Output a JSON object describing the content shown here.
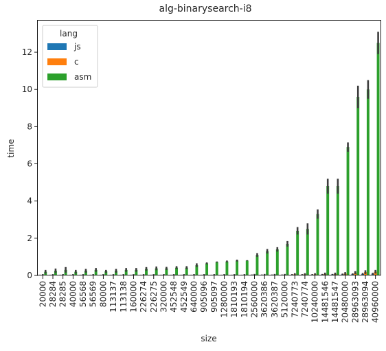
{
  "chart_data": {
    "type": "bar",
    "title": "alg-binarysearch-i8",
    "xlabel": "size",
    "ylabel": "time",
    "ylim": [
      0,
      13.7
    ],
    "yticks": [
      0,
      2,
      4,
      6,
      8,
      10,
      12
    ],
    "grid": false,
    "legend_position": "top-left",
    "legend_title": "lang",
    "categories": [
      "20000",
      "28284",
      "28285",
      "40000",
      "56568",
      "56569",
      "80000",
      "113137",
      "113138",
      "160000",
      "226274",
      "226275",
      "320000",
      "452548",
      "452549",
      "640000",
      "905096",
      "905097",
      "1280000",
      "1810193",
      "1810194",
      "2560000",
      "3620386",
      "3620387",
      "5120000",
      "7240773",
      "7240774",
      "10240000",
      "14481546",
      "14481547",
      "20480000",
      "28963093",
      "28963094",
      "40960000"
    ],
    "series": [
      {
        "name": "js",
        "color": "#1f77b4",
        "values": [
          0.02,
          0.02,
          0.02,
          0.02,
          0.02,
          0.02,
          0.02,
          0.02,
          0.02,
          0.02,
          0.02,
          0.02,
          0.02,
          0.02,
          0.02,
          0.02,
          0.02,
          0.02,
          0.02,
          0.02,
          0.02,
          0.03,
          0.03,
          0.03,
          0.03,
          0.04,
          0.04,
          0.04,
          0.05,
          0.05,
          0.06,
          0.07,
          0.08,
          0.09
        ],
        "errors": [
          0.02,
          0.02,
          0.02,
          0.02,
          0.02,
          0.02,
          0.02,
          0.02,
          0.02,
          0.02,
          0.02,
          0.02,
          0.02,
          0.02,
          0.02,
          0.02,
          0.02,
          0.02,
          0.02,
          0.02,
          0.02,
          0.02,
          0.02,
          0.02,
          0.02,
          0.03,
          0.03,
          0.03,
          0.03,
          0.03,
          0.04,
          0.04,
          0.05,
          0.05
        ]
      },
      {
        "name": "c",
        "color": "#ff7f0e",
        "values": [
          0.02,
          0.02,
          0.02,
          0.02,
          0.02,
          0.02,
          0.02,
          0.02,
          0.02,
          0.02,
          0.02,
          0.02,
          0.02,
          0.02,
          0.02,
          0.02,
          0.02,
          0.02,
          0.02,
          0.02,
          0.02,
          0.03,
          0.03,
          0.03,
          0.03,
          0.06,
          0.06,
          0.06,
          0.08,
          0.08,
          0.1,
          0.15,
          0.18,
          0.2
        ],
        "errors": [
          0.05,
          0.05,
          0.05,
          0.05,
          0.05,
          0.05,
          0.05,
          0.05,
          0.05,
          0.05,
          0.05,
          0.05,
          0.05,
          0.05,
          0.05,
          0.05,
          0.05,
          0.05,
          0.05,
          0.05,
          0.05,
          0.05,
          0.05,
          0.05,
          0.05,
          0.06,
          0.06,
          0.06,
          0.07,
          0.07,
          0.08,
          0.08,
          0.1,
          0.1
        ]
      },
      {
        "name": "asm",
        "color": "#2ca02c",
        "values": [
          0.2,
          0.25,
          0.3,
          0.2,
          0.25,
          0.3,
          0.22,
          0.25,
          0.3,
          0.3,
          0.35,
          0.38,
          0.38,
          0.42,
          0.42,
          0.55,
          0.65,
          0.72,
          0.75,
          0.8,
          0.8,
          1.1,
          1.3,
          1.4,
          1.7,
          2.4,
          2.5,
          3.3,
          4.8,
          4.8,
          6.9,
          9.6,
          10.0,
          12.5
        ],
        "errors": [
          0.1,
          0.12,
          0.15,
          0.1,
          0.1,
          0.1,
          0.08,
          0.1,
          0.1,
          0.1,
          0.1,
          0.1,
          0.08,
          0.08,
          0.08,
          0.1,
          0.05,
          0.03,
          0.05,
          0.05,
          0.02,
          0.1,
          0.12,
          0.12,
          0.15,
          0.2,
          0.3,
          0.25,
          0.4,
          0.4,
          0.25,
          0.6,
          0.5,
          0.6
        ]
      }
    ]
  }
}
